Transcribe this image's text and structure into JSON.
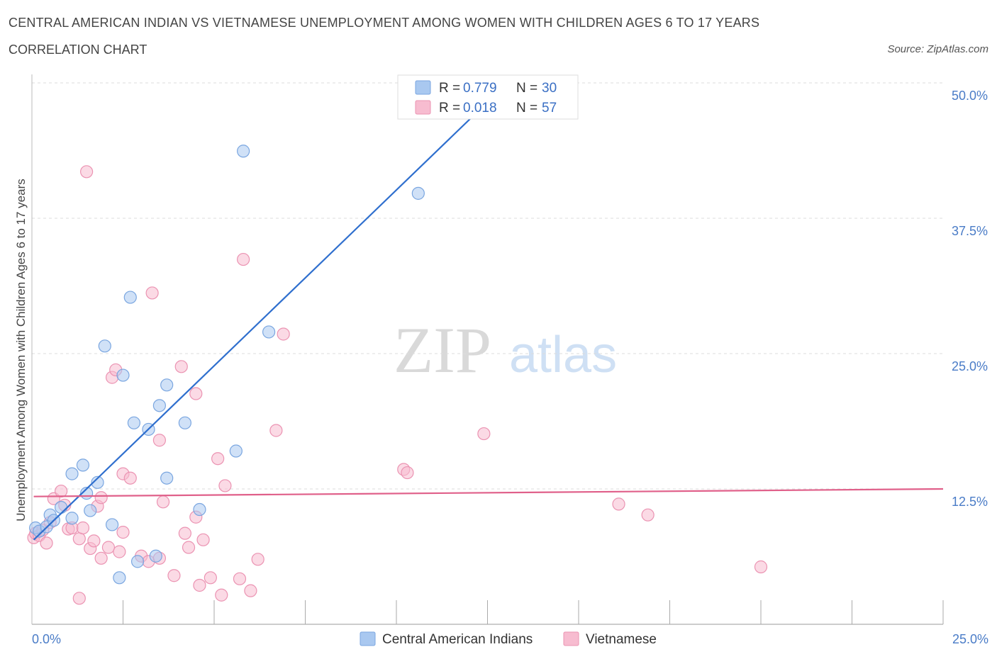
{
  "header": {
    "title": "CENTRAL AMERICAN INDIAN VS VIETNAMESE UNEMPLOYMENT AMONG WOMEN WITH CHILDREN AGES 6 TO 17 YEARS",
    "subtitle": "CORRELATION CHART",
    "source": "Source: ZipAtlas.com"
  },
  "watermark": {
    "zip": "ZIP",
    "atlas": "atlas"
  },
  "legend": {
    "r_label": "R =",
    "n_label": "N =",
    "entries": [
      {
        "r": "0.779",
        "n": "30",
        "color": "#a9c8f0"
      },
      {
        "r": "0.018",
        "n": "57",
        "color": "#f7bcd0"
      }
    ]
  },
  "colors": {
    "blue_fill": "#a9c8f0",
    "blue_line": "#2f6fce",
    "pink_fill": "#f7bcd0",
    "pink_line": "#e0608a",
    "tick": "#4a7cc7",
    "grid": "#dddddd"
  },
  "chart_data": {
    "type": "scatter",
    "title": "CENTRAL AMERICAN INDIAN VS VIETNAMESE UNEMPLOYMENT AMONG WOMEN WITH CHILDREN AGES 6 TO 17 YEARS",
    "ylabel": "Unemployment Among Women with Children Ages 6 to 17 years",
    "xlim": [
      0,
      25
    ],
    "ylim": [
      0,
      50
    ],
    "x_tick_labels": [
      "0.0%",
      "25.0%"
    ],
    "y_ticks": [
      12.5,
      25,
      37.5,
      50
    ],
    "y_tick_labels": [
      "12.5%",
      "25.0%",
      "37.5%",
      "50.0%"
    ],
    "grid": true,
    "legend_position": "top-center",
    "series": [
      {
        "name": "Central American Indians",
        "color": "#a9c8f0",
        "trend": {
          "x0": 0.05,
          "y0": 7.8,
          "x1": 13.2,
          "y1": 50.5
        },
        "points": [
          [
            0.1,
            8.9
          ],
          [
            0.2,
            8.6
          ],
          [
            0.4,
            9.0
          ],
          [
            0.5,
            10.1
          ],
          [
            0.6,
            9.6
          ],
          [
            0.8,
            10.8
          ],
          [
            1.1,
            9.8
          ],
          [
            1.1,
            13.9
          ],
          [
            1.4,
            14.7
          ],
          [
            1.5,
            12.1
          ],
          [
            1.6,
            10.5
          ],
          [
            1.8,
            13.1
          ],
          [
            2.0,
            25.7
          ],
          [
            2.2,
            9.2
          ],
          [
            2.4,
            4.3
          ],
          [
            2.5,
            23.0
          ],
          [
            2.7,
            30.2
          ],
          [
            2.8,
            18.6
          ],
          [
            2.9,
            5.8
          ],
          [
            3.2,
            18.0
          ],
          [
            3.4,
            6.3
          ],
          [
            3.5,
            20.2
          ],
          [
            3.7,
            22.1
          ],
          [
            3.7,
            13.5
          ],
          [
            4.2,
            18.6
          ],
          [
            4.6,
            10.6
          ],
          [
            5.6,
            16.0
          ],
          [
            5.8,
            43.7
          ],
          [
            6.5,
            27.0
          ],
          [
            10.6,
            39.8
          ]
        ]
      },
      {
        "name": "Vietnamese",
        "color": "#f7bcd0",
        "trend": {
          "x0": 0.05,
          "y0": 11.8,
          "x1": 25.0,
          "y1": 12.5
        },
        "points": [
          [
            0.05,
            8.0
          ],
          [
            0.1,
            8.4
          ],
          [
            0.2,
            8.2
          ],
          [
            0.3,
            8.7
          ],
          [
            0.4,
            7.5
          ],
          [
            0.5,
            9.4
          ],
          [
            0.6,
            11.6
          ],
          [
            0.8,
            12.3
          ],
          [
            0.9,
            11.0
          ],
          [
            1.0,
            8.8
          ],
          [
            1.1,
            8.9
          ],
          [
            1.3,
            7.9
          ],
          [
            1.3,
            2.4
          ],
          [
            1.4,
            8.9
          ],
          [
            1.6,
            7.0
          ],
          [
            1.7,
            7.7
          ],
          [
            1.8,
            10.9
          ],
          [
            1.9,
            6.1
          ],
          [
            1.9,
            11.7
          ],
          [
            2.1,
            7.1
          ],
          [
            2.2,
            22.8
          ],
          [
            2.3,
            23.5
          ],
          [
            2.4,
            6.7
          ],
          [
            2.5,
            13.9
          ],
          [
            2.5,
            8.5
          ],
          [
            2.7,
            13.5
          ],
          [
            3.0,
            6.3
          ],
          [
            3.2,
            5.8
          ],
          [
            3.3,
            30.6
          ],
          [
            3.5,
            6.1
          ],
          [
            3.5,
            17.0
          ],
          [
            3.6,
            11.3
          ],
          [
            3.9,
            4.5
          ],
          [
            4.1,
            23.8
          ],
          [
            4.2,
            8.4
          ],
          [
            4.3,
            7.1
          ],
          [
            4.5,
            21.3
          ],
          [
            4.5,
            9.9
          ],
          [
            4.6,
            3.6
          ],
          [
            4.7,
            7.8
          ],
          [
            4.9,
            4.3
          ],
          [
            5.1,
            15.3
          ],
          [
            5.2,
            2.7
          ],
          [
            5.3,
            12.8
          ],
          [
            5.7,
            4.2
          ],
          [
            5.8,
            33.7
          ],
          [
            6.0,
            3.1
          ],
          [
            6.2,
            6.0
          ],
          [
            6.7,
            17.9
          ],
          [
            6.9,
            26.8
          ],
          [
            1.5,
            41.8
          ],
          [
            10.2,
            14.3
          ],
          [
            10.3,
            14.0
          ],
          [
            12.4,
            17.6
          ],
          [
            16.1,
            11.1
          ],
          [
            16.9,
            10.1
          ],
          [
            20.0,
            5.3
          ]
        ]
      }
    ]
  }
}
